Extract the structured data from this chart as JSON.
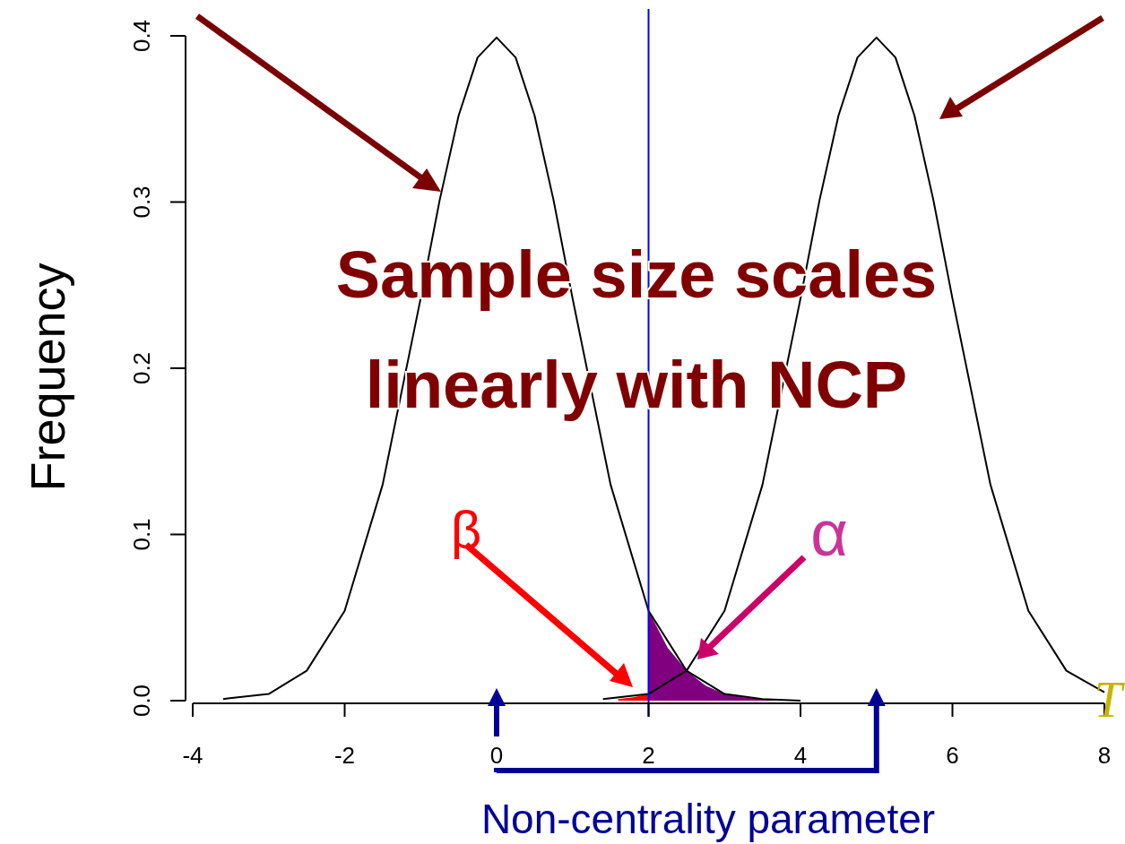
{
  "chart_data": {
    "type": "line",
    "ylabel": "Frequency",
    "xlim": [
      -4,
      8
    ],
    "ylim": [
      0,
      0.4
    ],
    "xticks": [
      -4,
      -2,
      0,
      2,
      4,
      6,
      8
    ],
    "yticks": [
      {
        "value": 0,
        "label": "0.0"
      },
      0.1,
      0.2,
      0.3,
      0.4
    ],
    "grid": false,
    "marker": "none",
    "line_style": "solid",
    "series": [
      {
        "color": "#000000",
        "x": [
          -3.6,
          -3,
          -2.5,
          -2,
          -1.5,
          -1,
          -0.75,
          -0.5,
          -0.25,
          0,
          0.25,
          0.5,
          0.75,
          1,
          1.5,
          2,
          2.5,
          3,
          3.5,
          4
        ],
        "values": [
          0.001,
          0.004,
          0.018,
          0.054,
          0.13,
          0.242,
          0.301,
          0.352,
          0.387,
          0.399,
          0.387,
          0.352,
          0.301,
          0.242,
          0.13,
          0.054,
          0.018,
          0.004,
          0.001,
          0.0
        ]
      },
      {
        "color": "#000000",
        "x": [
          1.4,
          2,
          2.5,
          3,
          3.5,
          4,
          4.25,
          4.5,
          4.75,
          5,
          5.25,
          5.5,
          5.75,
          6,
          6.5,
          7,
          7.5,
          8
        ],
        "values": [
          0.001,
          0.004,
          0.018,
          0.054,
          0.13,
          0.242,
          0.301,
          0.352,
          0.387,
          0.399,
          0.387,
          0.352,
          0.301,
          0.242,
          0.13,
          0.054,
          0.018,
          0.005
        ]
      },
      {
        "type": "area",
        "color": "#800080",
        "x": [
          2,
          2.25,
          2.5,
          2.75,
          3,
          3.25,
          3.5,
          3.75
        ],
        "values": [
          0.054,
          0.032,
          0.018,
          0.009,
          0.004,
          0.002,
          0.001,
          0.0
        ]
      },
      {
        "type": "area",
        "color": "#ff0000",
        "x": [
          1.6,
          1.8,
          2
        ],
        "values": [
          0.001,
          0.002,
          0.004
        ]
      }
    ],
    "ref_lines": [
      {
        "axis": "x",
        "value": 2,
        "color": "#0000ff"
      }
    ],
    "annotations": [
      "Sample size scales linearly with NCP",
      "β",
      "α",
      "Non-centrality parameter",
      "T"
    ]
  }
}
